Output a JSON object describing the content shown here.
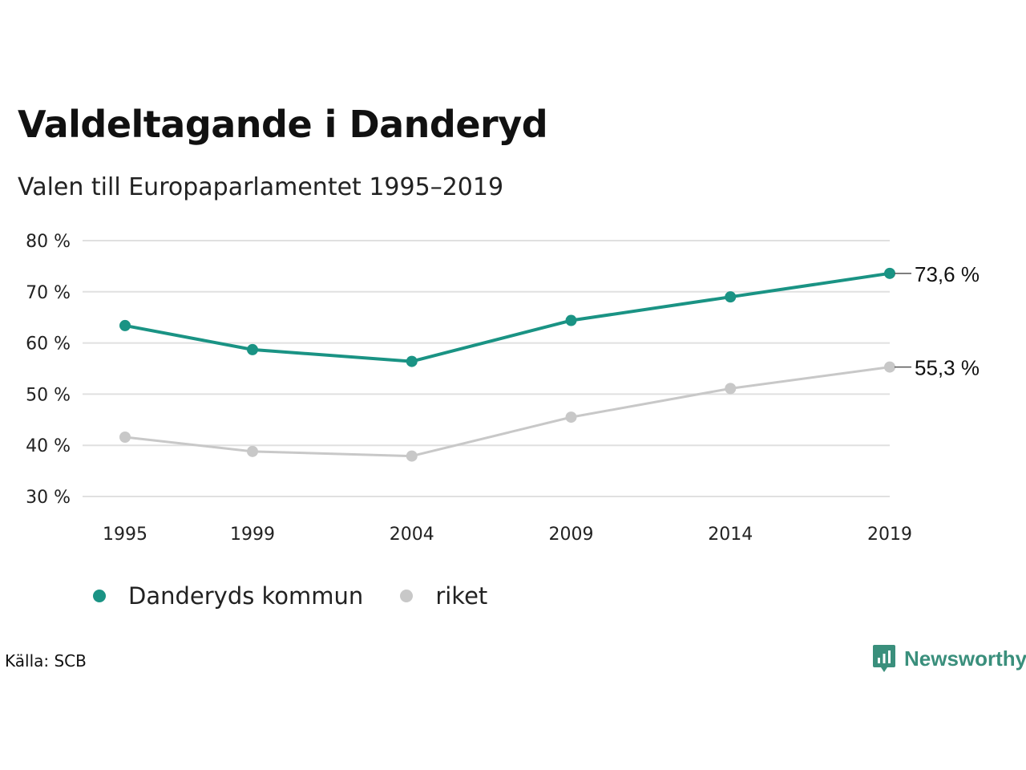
{
  "header": {
    "title": "Valdeltagande i Danderyd",
    "subtitle": "Valen till Europaparlamentet 1995–2019"
  },
  "colors": {
    "primary": "#1a9384",
    "secondary": "#c8c8c8",
    "grid": "#e0e0e0",
    "brand": "#3a8f7c"
  },
  "chart_data": {
    "type": "line",
    "x": [
      "1995",
      "1999",
      "2004",
      "2009",
      "2014",
      "2019"
    ],
    "x_numeric": [
      1995,
      1999,
      2004,
      2009,
      2014,
      2019
    ],
    "ylim": [
      30,
      80
    ],
    "yticks": [
      30,
      40,
      50,
      60,
      70,
      80
    ],
    "ytick_labels": [
      "30 %",
      "40 %",
      "50 %",
      "60 %",
      "70 %",
      "80 %"
    ],
    "grid": true,
    "series": [
      {
        "name": "Danderyds kommun",
        "values": [
          63.4,
          58.7,
          56.4,
          64.4,
          69.0,
          73.6
        ],
        "end_label": "73,6 %"
      },
      {
        "name": "riket",
        "values": [
          41.6,
          38.8,
          37.9,
          45.5,
          51.1,
          55.3
        ],
        "end_label": "55,3 %"
      }
    ],
    "legend_position": "bottom-left"
  },
  "footer": {
    "source": "Källa: SCB",
    "brand": "Newsworthy"
  }
}
